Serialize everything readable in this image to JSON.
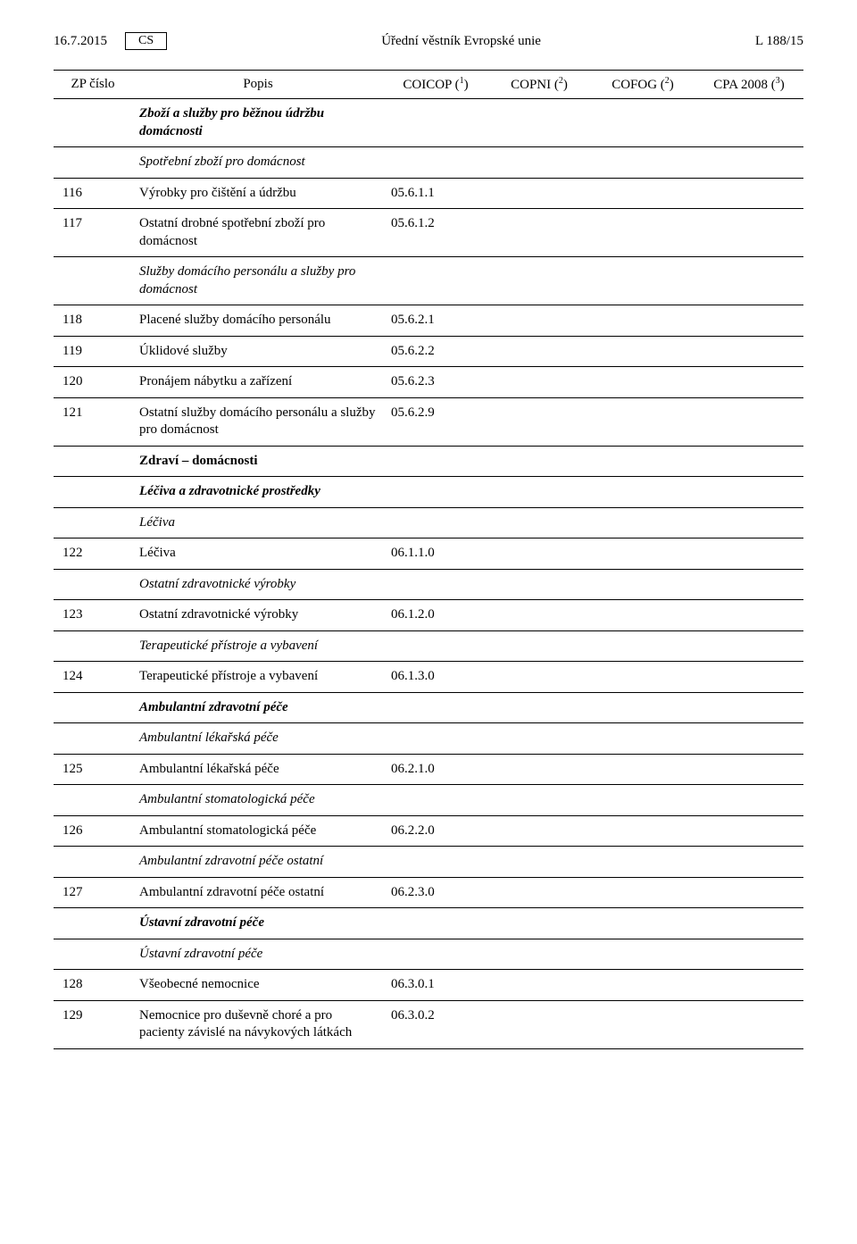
{
  "header": {
    "date": "16.7.2015",
    "lang": "CS",
    "center": "Úřední věstník Evropské unie",
    "right": "L 188/15"
  },
  "columns": {
    "zp": "ZP číslo",
    "popis": "Popis",
    "coicop": "COICOP",
    "copni": "COPNI",
    "cofog": "COFOG",
    "cpa": "CPA 2008",
    "note1": "1",
    "note2a": "2",
    "note2b": "2",
    "note3": "3"
  },
  "rows": [
    {
      "zp": "",
      "popis": "Zboží a služby pro běžnou údržbu domácnosti",
      "coicop": "",
      "style": "bolditalic",
      "indent": 0
    },
    {
      "zp": "",
      "popis": "Spotřební zboží pro domácnost",
      "coicop": "",
      "style": "italic",
      "indent": 0
    },
    {
      "zp": "116",
      "popis": "Výrobky pro čištění a údržbu",
      "coicop": "05.6.1.1",
      "style": "",
      "indent": 1
    },
    {
      "zp": "117",
      "popis": "Ostatní drobné spotřební zboží pro domácnost",
      "coicop": "05.6.1.2",
      "style": "",
      "indent": 1
    },
    {
      "zp": "",
      "popis": "Služby domácího personálu a služby pro domácnost",
      "coicop": "",
      "style": "italic",
      "indent": 0
    },
    {
      "zp": "118",
      "popis": "Placené služby domácího personálu",
      "coicop": "05.6.2.1",
      "style": "",
      "indent": 1
    },
    {
      "zp": "119",
      "popis": "Úklidové služby",
      "coicop": "05.6.2.2",
      "style": "",
      "indent": 1
    },
    {
      "zp": "120",
      "popis": "Pronájem nábytku a zařízení",
      "coicop": "05.6.2.3",
      "style": "",
      "indent": 1
    },
    {
      "zp": "121",
      "popis": "Ostatní služby domácího personálu a služby pro domácnost",
      "coicop": "05.6.2.9",
      "style": "",
      "indent": 1
    },
    {
      "zp": "",
      "popis": "Zdraví – domácnosti",
      "coicop": "",
      "style": "bold",
      "indent": 0
    },
    {
      "zp": "",
      "popis": "Léčiva a zdravotnické prostředky",
      "coicop": "",
      "style": "bolditalic",
      "indent": 0
    },
    {
      "zp": "",
      "popis": "Léčiva",
      "coicop": "",
      "style": "italic",
      "indent": 0
    },
    {
      "zp": "122",
      "popis": "Léčiva",
      "coicop": "06.1.1.0",
      "style": "",
      "indent": 1
    },
    {
      "zp": "",
      "popis": "Ostatní zdravotnické výrobky",
      "coicop": "",
      "style": "italic",
      "indent": 0
    },
    {
      "zp": "123",
      "popis": "Ostatní zdravotnické výrobky",
      "coicop": "06.1.2.0",
      "style": "",
      "indent": 1
    },
    {
      "zp": "",
      "popis": "Terapeutické přístroje a vybavení",
      "coicop": "",
      "style": "italic",
      "indent": 0
    },
    {
      "zp": "124",
      "popis": "Terapeutické přístroje a vybavení",
      "coicop": "06.1.3.0",
      "style": "",
      "indent": 1
    },
    {
      "zp": "",
      "popis": "Ambulantní zdravotní péče",
      "coicop": "",
      "style": "bolditalic",
      "indent": 0
    },
    {
      "zp": "",
      "popis": "Ambulantní lékařská péče",
      "coicop": "",
      "style": "italic",
      "indent": 0
    },
    {
      "zp": "125",
      "popis": "Ambulantní lékařská péče",
      "coicop": "06.2.1.0",
      "style": "",
      "indent": 1
    },
    {
      "zp": "",
      "popis": "Ambulantní stomatologická péče",
      "coicop": "",
      "style": "italic",
      "indent": 0
    },
    {
      "zp": "126",
      "popis": "Ambulantní stomatologická péče",
      "coicop": "06.2.2.0",
      "style": "",
      "indent": 1
    },
    {
      "zp": "",
      "popis": "Ambulantní zdravotní péče ostatní",
      "coicop": "",
      "style": "italic",
      "indent": 0
    },
    {
      "zp": "127",
      "popis": "Ambulantní zdravotní péče ostatní",
      "coicop": "06.2.3.0",
      "style": "",
      "indent": 1
    },
    {
      "zp": "",
      "popis": "Ústavní zdravotní péče",
      "coicop": "",
      "style": "bolditalic",
      "indent": 0
    },
    {
      "zp": "",
      "popis": "Ústavní zdravotní péče",
      "coicop": "",
      "style": "italic",
      "indent": 0
    },
    {
      "zp": "128",
      "popis": "Všeobecné nemocnice",
      "coicop": "06.3.0.1",
      "style": "",
      "indent": 1
    },
    {
      "zp": "129",
      "popis": "Nemocnice pro duševně choré a pro pacienty závislé na návykových látkách",
      "coicop": "06.3.0.2",
      "style": "",
      "indent": 1
    }
  ]
}
